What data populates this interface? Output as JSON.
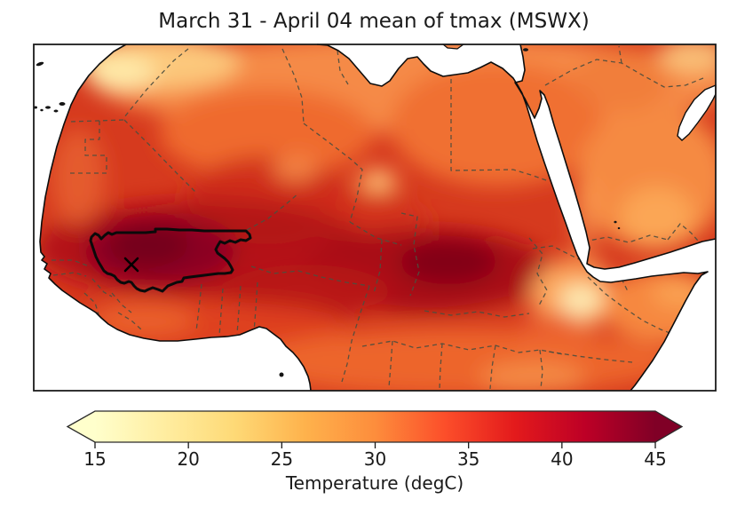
{
  "figure": {
    "title": "March 31 - April 04 mean of tmax (MSWX)"
  },
  "map": {
    "ocean_color": "#ffffff",
    "coastline_color": "#0d0d0d",
    "country_border_style": "dashed dark-olive lines",
    "highlighted_region": "study region in western Sahel outlined with thick black line",
    "marker": {
      "symbol": "x",
      "color": "#000000"
    }
  },
  "colorbar": {
    "label": "Temperature (degC)",
    "min": 15,
    "max": 45,
    "tick_values": [
      15,
      20,
      25,
      30,
      35,
      40,
      45
    ],
    "extend": "both",
    "colormap_stops": [
      "#ffffcc",
      "#ffeda0",
      "#fed976",
      "#feb24c",
      "#fd8d3c",
      "#fc4e2a",
      "#e31a1c",
      "#bd0026",
      "#800026"
    ]
  },
  "chart_data": {
    "type": "heatmap",
    "title": "March 31 - April 04 mean of tmax (MSWX)",
    "variable": "tmax (mean of March 31 - April 04)",
    "dataset_label": "MSWX",
    "geographic_extent": "North Africa, Sahel, Horn of Africa and Arabian Peninsula; white = ocean",
    "colorbar": {
      "label": "Temperature (degC)",
      "ticks": [
        15,
        20,
        25,
        30,
        35,
        40,
        45
      ],
      "range": [
        15,
        45
      ],
      "extend": "both",
      "colormap": "YlOrRd"
    },
    "annotations": [
      {
        "type": "region-outline",
        "style": "thick black solid line",
        "location": "western Sahel (Mali area)"
      },
      {
        "type": "marker",
        "symbol": "x",
        "location": "inside outlined region"
      }
    ],
    "estimated_values_degC": [
      {
        "region": "outlined western Sahel region (around x marker)",
        "value": 43
      },
      {
        "region": "Chad / western Sudan dark core",
        "value": 42
      },
      {
        "region": "central Sahara (southern Algeria, Niger)",
        "value": 39
      },
      {
        "region": "Mediterranean coast (Libya, Egypt)",
        "value": 31
      },
      {
        "region": "Atlas Mountains (Morocco)",
        "value": 21
      },
      {
        "region": "Tibesti / Hoggar mountain spots",
        "value": 28
      },
      {
        "region": "Ethiopian Highlands",
        "value": 23
      },
      {
        "region": "Arabian Peninsula interior",
        "value": 32
      },
      {
        "region": "Gulf of Guinea coastal belt",
        "value": 36
      }
    ],
    "legend_position": "horizontal colorbar below map",
    "grid": false
  }
}
